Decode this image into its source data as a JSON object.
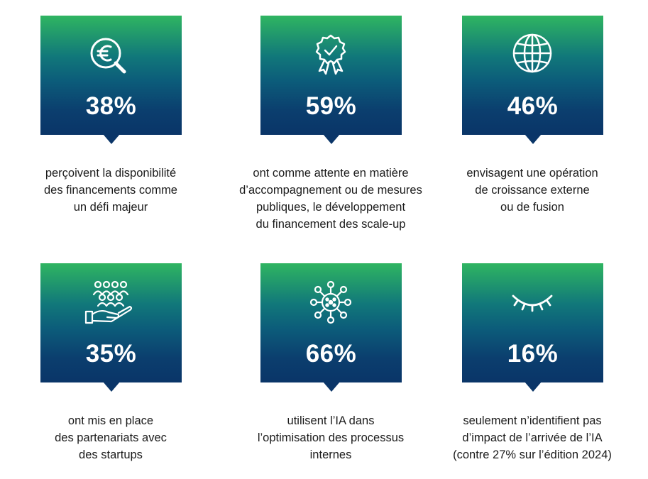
{
  "cards": [
    {
      "icon": "euro-magnifier-icon",
      "value": "38%",
      "lines": [
        "perçoivent la disponibilité",
        "des financements comme",
        "un défi majeur"
      ]
    },
    {
      "icon": "award-ribbon-icon",
      "value": "59%",
      "lines": [
        "ont comme attente en matière",
        "d’accompagnement ou de mesures",
        "publiques, le développement",
        "du financement des scale-up"
      ]
    },
    {
      "icon": "globe-icon",
      "value": "46%",
      "lines": [
        "envisagent une opération",
        "de croissance externe",
        "ou de fusion"
      ]
    },
    {
      "icon": "people-on-hand-icon",
      "value": "35%",
      "lines": [
        "ont mis en place",
        "des partenariats avec",
        "des startups"
      ]
    },
    {
      "icon": "network-hub-icon",
      "value": "66%",
      "lines": [
        "utilisent l’IA dans",
        "l’optimisation des processus",
        "internes"
      ]
    },
    {
      "icon": "closed-eye-icon",
      "value": "16%",
      "lines": [
        "seulement n’identifient pas",
        "d’impact de l’arrivée de l’IA",
        "(contre 27% sur l’édition 2024)"
      ]
    }
  ],
  "colors": {
    "gradient_top": "#2fb561",
    "gradient_bottom": "#0a3568",
    "text": "#1b1b1b",
    "stat_text": "#ffffff"
  }
}
